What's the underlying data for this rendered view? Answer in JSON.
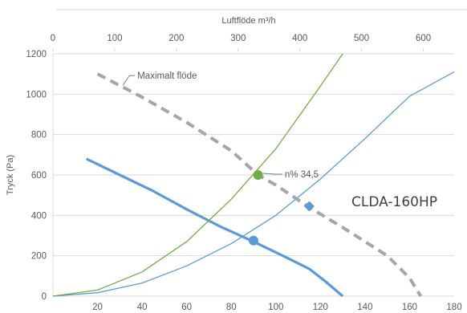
{
  "chart_data": {
    "type": "line",
    "title": "",
    "model_label": "CLDA-160HP",
    "xlabel_top": "Luftflöde m³/h",
    "ylabel": "Tryck (Pa)",
    "x_top_range": [
      0,
      650
    ],
    "x_top_ticks": [
      "0",
      "100",
      "200",
      "300",
      "400",
      "500",
      "600"
    ],
    "x_bottom_range": [
      0,
      180
    ],
    "x_bottom_ticks": [
      "20",
      "40",
      "60",
      "80",
      "100",
      "120",
      "140",
      "160",
      "180"
    ],
    "ylim": [
      0,
      1200
    ],
    "y_ticks": [
      "0",
      "200",
      "400",
      "600",
      "800",
      "1000",
      "1200"
    ],
    "grid": "horizontal",
    "colors": {
      "fan_curve": "#5b9bd5",
      "system_curve_green": "#70ad47",
      "max_flow": "#a6a6a6",
      "gridline": "#d9d9d9",
      "text": "#595959"
    },
    "series": [
      {
        "role": "fan_curve",
        "x": [
          15,
          30,
          45,
          60,
          75,
          90,
          105,
          115,
          122,
          130
        ],
        "y": [
          680,
          600,
          520,
          430,
          345,
          270,
          190,
          135,
          75,
          0
        ]
      },
      {
        "role": "system_curve_blue",
        "x": [
          0,
          20,
          40,
          60,
          80,
          100,
          120,
          140,
          160,
          180
        ],
        "y": [
          0,
          17,
          65,
          150,
          260,
          400,
          580,
          780,
          990,
          1110
        ]
      },
      {
        "role": "system_curve_green",
        "x": [
          0,
          20,
          40,
          60,
          80,
          100,
          120,
          130
        ],
        "y": [
          0,
          30,
          120,
          270,
          480,
          730,
          1040,
          1200
        ]
      },
      {
        "name": "Maximalt flöde",
        "role": "max_flow",
        "x": [
          20,
          40,
          60,
          80,
          92,
          100,
          115,
          130,
          150,
          160,
          165
        ],
        "y": [
          1100,
          985,
          860,
          720,
          600,
          550,
          440,
          340,
          200,
          90,
          0
        ]
      }
    ],
    "markers": [
      {
        "role": "operating_point_1",
        "x": 90,
        "y": 275,
        "shape": "circle",
        "color": "#5b9bd5"
      },
      {
        "role": "operating_point_2",
        "x": 115,
        "y": 445,
        "shape": "diamond",
        "color": "#5b9bd5"
      },
      {
        "role": "operating_point_3",
        "x": 92,
        "y": 600,
        "shape": "circle",
        "color": "#70ad47"
      }
    ],
    "annotations": [
      {
        "text": "Maximalt flöde",
        "x": 35,
        "y": 1080
      },
      {
        "text": "n% 34,5",
        "x": 104,
        "y": 620
      }
    ]
  }
}
